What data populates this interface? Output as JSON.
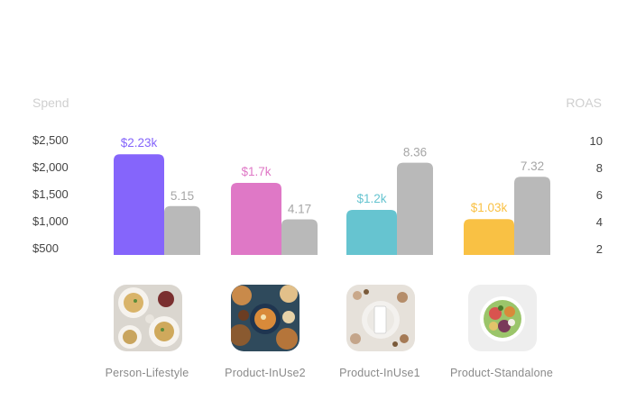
{
  "chart_data": {
    "type": "bar",
    "ylabel_left": "Spend",
    "ylabel_right": "ROAS",
    "left_ticks": [
      "$2,500",
      "$2,000",
      "$1,500",
      "$1,000",
      "$500"
    ],
    "left_tick_values": [
      2500,
      2000,
      1500,
      1000,
      500
    ],
    "right_ticks": [
      "10",
      "8",
      "6",
      "4",
      "2"
    ],
    "right_tick_values": [
      10,
      8,
      6,
      4,
      2
    ],
    "categories": [
      "Person-Lifestyle",
      "Product-InUse2",
      "Product-InUse1",
      "Product-Standalone"
    ],
    "series": [
      {
        "axis": "left",
        "values": [
          2230,
          1700,
          1200,
          1030
        ],
        "labels": [
          "$2.23k",
          "$1.7k",
          "$1.2k",
          "$1.03k"
        ],
        "colors": [
          "#8565fb",
          "#df78c6",
          "#66c4d0",
          "#f9c144"
        ]
      },
      {
        "axis": "right",
        "values": [
          5.15,
          4.17,
          8.36,
          7.32
        ],
        "labels": [
          "5.15",
          "4.17",
          "8.36",
          "7.32"
        ],
        "color": "#b9b9b9"
      }
    ],
    "thumbnails": [
      "pasta-plates-image",
      "food-spread-image",
      "table-setting-image",
      "salad-bowl-image"
    ]
  }
}
